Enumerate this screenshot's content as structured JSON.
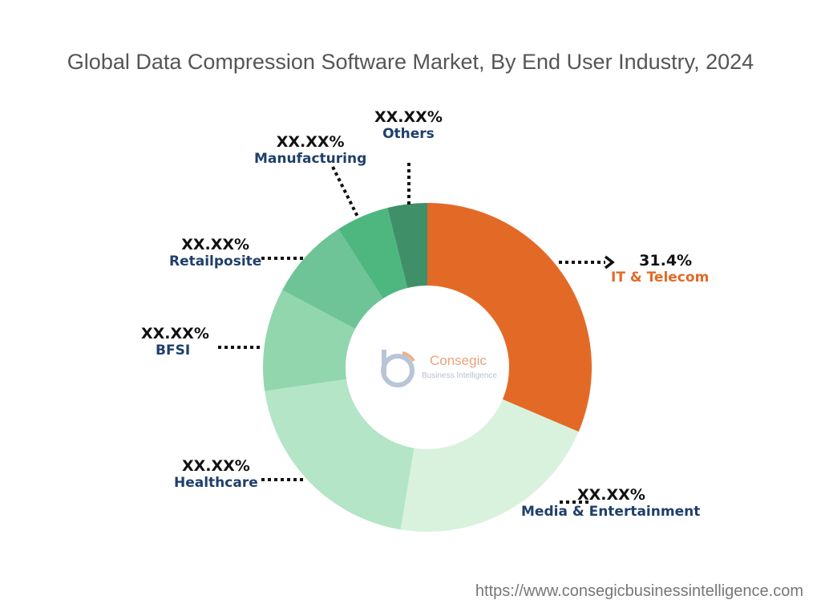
{
  "chart_data": {
    "type": "pie",
    "donut": true,
    "title": "Global Data Compression Software Market, By End User Industry, 2024",
    "slices": [
      {
        "label": "IT & Telecom",
        "value": 31.4,
        "display": "31.4%",
        "color": "#E36A26"
      },
      {
        "label": "Media & Entertainment",
        "value": 21.2,
        "display": "XX.XX%",
        "color": "#D9F2DE"
      },
      {
        "label": "Healthcare",
        "value": 20.1,
        "display": "XX.XX%",
        "color": "#B3E5C6"
      },
      {
        "label": "BFSI",
        "value": 10.1,
        "display": "XX.XX%",
        "color": "#92D6AE"
      },
      {
        "label": "Retailposite",
        "value": 8.1,
        "display": "XX.XX%",
        "color": "#6FC497"
      },
      {
        "label": "Manufacturing",
        "value": 5.2,
        "display": "XX.XX%",
        "color": "#4DB77F"
      },
      {
        "label": "Others",
        "value": 3.9,
        "display": "XX.XX%",
        "color": "#3F8F68"
      }
    ]
  },
  "logo": {
    "name": "Consegic",
    "tagline": "Business Intelligence"
  },
  "footer": {
    "url": "https://www.consegicbusinessintelligence.com"
  }
}
